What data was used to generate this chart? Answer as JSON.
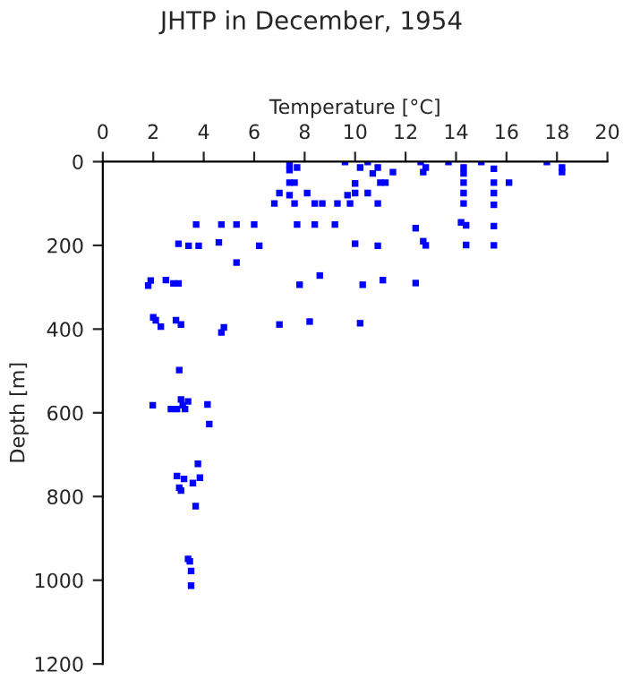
{
  "chart_data": {
    "type": "scatter",
    "title": "JHTP in December, 1954",
    "xlabel": "Temperature [°C]",
    "ylabel": "Depth [m]",
    "x": [
      7.4,
      7.4,
      7.7,
      7.4,
      7.6,
      7.0,
      7.4,
      8.1,
      6.8,
      7.6,
      8.4,
      8.7,
      9.3,
      9.8,
      9.7,
      10.0,
      10.0,
      10.2,
      9.6,
      10.5,
      10.9,
      10.7,
      11.0,
      10.5,
      10.9,
      11.5,
      11.2,
      12.6,
      12.8,
      12.7,
      13.7,
      14.3,
      14.3,
      14.3,
      14.3,
      14.3,
      14.2,
      14.4,
      15.0,
      15.5,
      15.5,
      15.5,
      15.5,
      15.5,
      16.1,
      17.6,
      18.2,
      18.2,
      3.7,
      4.7,
      5.3,
      6.0,
      7.7,
      8.4,
      9.2,
      12.4,
      3.0,
      3.4,
      3.8,
      4.6,
      6.2,
      10.0,
      10.9,
      12.7,
      12.8,
      14.4,
      15.5,
      5.3,
      1.9,
      1.8,
      2.5,
      2.8,
      3.0,
      8.6,
      7.8,
      10.3,
      11.1,
      12.4,
      2.0,
      2.1,
      2.3,
      2.9,
      3.1,
      4.8,
      4.7,
      7.0,
      8.2,
      10.2,
      3.03,
      1.98,
      2.7,
      2.94,
      3.1,
      3.17,
      3.26,
      3.38,
      4.15,
      4.22,
      3.77,
      2.94,
      3.22,
      3.85,
      3.57,
      3.03,
      3.1,
      3.68,
      3.38,
      3.45,
      3.5,
      3.5
    ],
    "values": [
      7,
      20,
      14,
      50,
      50,
      75,
      80,
      75,
      100,
      100,
      100,
      100,
      100,
      100,
      80,
      75,
      52,
      14,
      1,
      1,
      14,
      28,
      50,
      75,
      100,
      25,
      50,
      1,
      14,
      25,
      1,
      14,
      28,
      50,
      75,
      100,
      145,
      152,
      1,
      17,
      50,
      75,
      103,
      154,
      50,
      1,
      14,
      25,
      150,
      150,
      150,
      150,
      150,
      150,
      150,
      159,
      196,
      201,
      201,
      193,
      201,
      196,
      201,
      190,
      200,
      199,
      200,
      241,
      284,
      296,
      283,
      291,
      291,
      272,
      294,
      294,
      283,
      290,
      372,
      379,
      394,
      379,
      389,
      396,
      408,
      389,
      382,
      386,
      498,
      582,
      591,
      591,
      568,
      582,
      591,
      573,
      580,
      627,
      722,
      751,
      758,
      755,
      768,
      779,
      786,
      823,
      949,
      955,
      978,
      1013
    ],
    "color": "#0000ff",
    "marker": "square",
    "xlim": [
      0,
      20
    ],
    "xticks": [
      0,
      2,
      4,
      6,
      8,
      10,
      12,
      14,
      16,
      18,
      20
    ],
    "ylim": [
      1200,
      0
    ],
    "yticks": [
      0,
      200,
      400,
      600,
      800,
      1000,
      1200
    ],
    "grid": false
  }
}
